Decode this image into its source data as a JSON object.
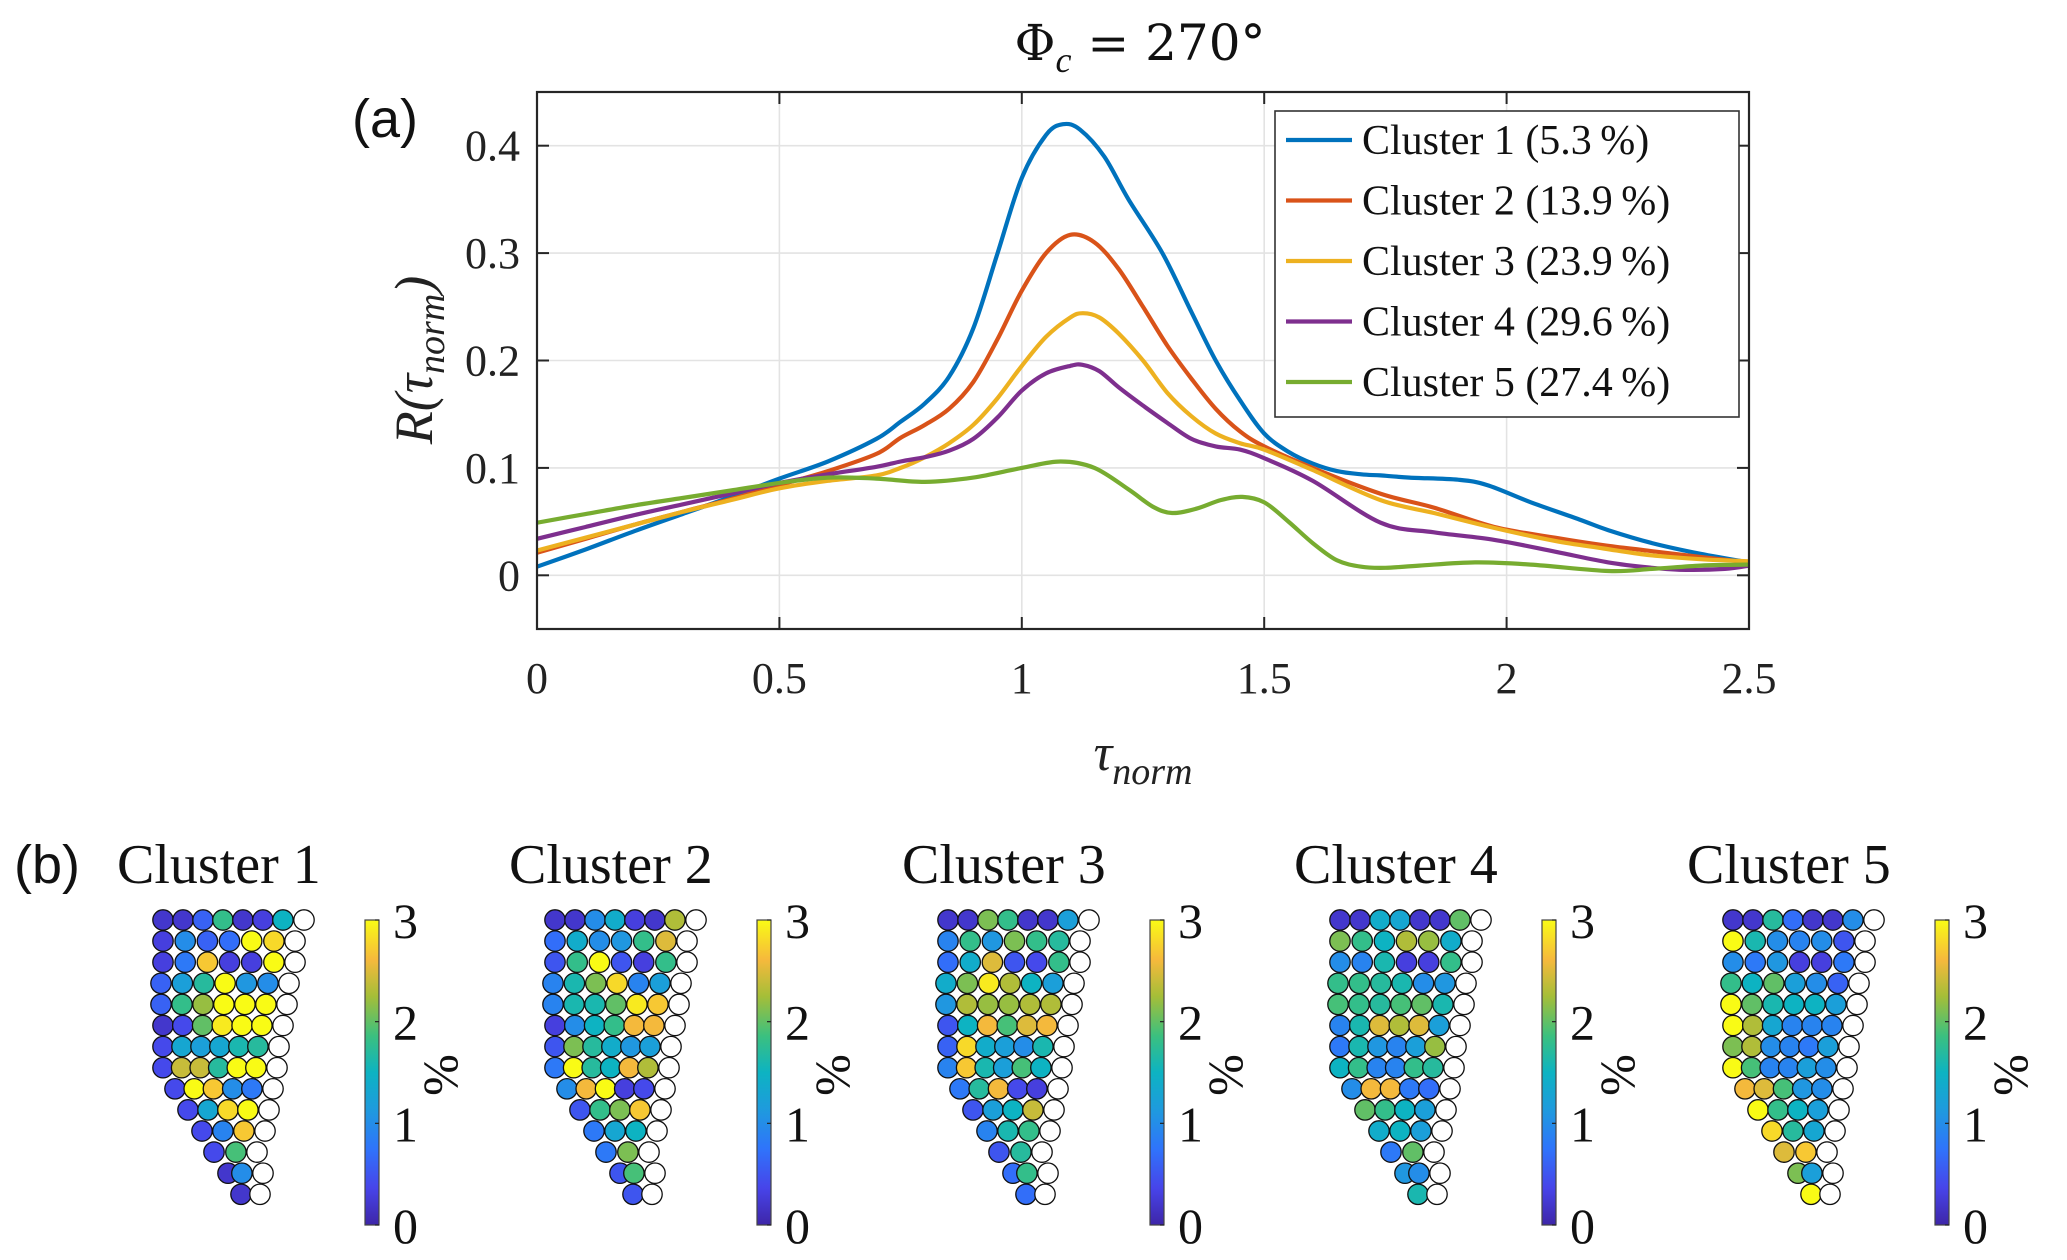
{
  "figure": {
    "title": "Φc = 270°",
    "title_main": "Φ",
    "title_sub": "c",
    "title_rest": " = 270°",
    "panel_a_label": "(a)",
    "panel_b_label": "(b)"
  },
  "chart_data": [
    {
      "type": "line",
      "panel": "(a)",
      "title": "Φc = 270°",
      "xlabel": "τ_norm",
      "xlabel_main": "τ",
      "xlabel_sub": "norm",
      "ylabel": "R(τ_norm)",
      "ylabel_parts": {
        "pre": "R(",
        "tau": "τ",
        "sub": "norm",
        "post": ")"
      },
      "xlim": [
        0,
        2.5
      ],
      "ylim": [
        -0.05,
        0.45
      ],
      "xticks": [
        0,
        0.5,
        1,
        1.5,
        2,
        2.5
      ],
      "xtick_labels": [
        "0",
        "0.5",
        "1",
        "1.5",
        "2",
        "2.5"
      ],
      "yticks": [
        0,
        0.1,
        0.2,
        0.3,
        0.4
      ],
      "ytick_labels": [
        "0",
        "0.1",
        "0.2",
        "0.3",
        "0.4"
      ],
      "grid": true,
      "legend_position": "top-right",
      "series": [
        {
          "name": "Cluster 1 (5.3%)",
          "label": "Cluster 1",
          "share": "5.3",
          "color": "#0072BD",
          "x": [
            0,
            0.1,
            0.2,
            0.3,
            0.4,
            0.5,
            0.6,
            0.7,
            0.75,
            0.8,
            0.85,
            0.9,
            0.95,
            1.0,
            1.05,
            1.085,
            1.12,
            1.17,
            1.22,
            1.29,
            1.35,
            1.4,
            1.45,
            1.5,
            1.55,
            1.6,
            1.65,
            1.7,
            1.74,
            1.8,
            1.9,
            1.96,
            2.05,
            2.15,
            2.21,
            2.3,
            2.4,
            2.5
          ],
          "y": [
            0.008,
            0.024,
            0.041,
            0.057,
            0.073,
            0.09,
            0.106,
            0.127,
            0.143,
            0.16,
            0.185,
            0.23,
            0.3,
            0.37,
            0.41,
            0.42,
            0.415,
            0.39,
            0.35,
            0.3,
            0.245,
            0.2,
            0.163,
            0.132,
            0.115,
            0.104,
            0.097,
            0.094,
            0.093,
            0.091,
            0.089,
            0.084,
            0.068,
            0.052,
            0.042,
            0.03,
            0.02,
            0.012
          ]
        },
        {
          "name": "Cluster 2 (13.9%)",
          "label": "Cluster 2",
          "share": "13.9",
          "color": "#D95319",
          "x": [
            0,
            0.1,
            0.2,
            0.3,
            0.4,
            0.5,
            0.6,
            0.7,
            0.75,
            0.8,
            0.85,
            0.9,
            0.95,
            1.0,
            1.05,
            1.1,
            1.15,
            1.2,
            1.25,
            1.3,
            1.35,
            1.4,
            1.45,
            1.5,
            1.6,
            1.74,
            1.85,
            1.975,
            2.1,
            2.2,
            2.29,
            2.4,
            2.5
          ],
          "y": [
            0.021,
            0.034,
            0.047,
            0.059,
            0.071,
            0.084,
            0.097,
            0.113,
            0.128,
            0.14,
            0.155,
            0.18,
            0.22,
            0.265,
            0.3,
            0.317,
            0.31,
            0.285,
            0.25,
            0.214,
            0.183,
            0.155,
            0.134,
            0.12,
            0.1,
            0.076,
            0.063,
            0.045,
            0.035,
            0.028,
            0.023,
            0.017,
            0.012
          ]
        },
        {
          "name": "Cluster 3 (23.9%)",
          "label": "Cluster 3",
          "share": "23.9",
          "color": "#EDB120",
          "x": [
            0,
            0.1,
            0.2,
            0.3,
            0.4,
            0.5,
            0.6,
            0.7,
            0.75,
            0.8,
            0.85,
            0.9,
            0.95,
            1.0,
            1.05,
            1.1,
            1.126,
            1.16,
            1.2,
            1.25,
            1.3,
            1.35,
            1.4,
            1.45,
            1.5,
            1.6,
            1.74,
            1.85,
            1.975,
            2.1,
            2.2,
            2.29,
            2.4,
            2.5
          ],
          "y": [
            0.023,
            0.035,
            0.047,
            0.059,
            0.07,
            0.081,
            0.088,
            0.093,
            0.1,
            0.11,
            0.123,
            0.14,
            0.165,
            0.195,
            0.222,
            0.24,
            0.244,
            0.24,
            0.225,
            0.2,
            0.17,
            0.148,
            0.132,
            0.123,
            0.117,
            0.098,
            0.07,
            0.058,
            0.044,
            0.032,
            0.025,
            0.019,
            0.015,
            0.013
          ]
        },
        {
          "name": "Cluster 4 (29.6%)",
          "label": "Cluster 4",
          "share": "29.6",
          "color": "#7E2F8E",
          "x": [
            0,
            0.1,
            0.2,
            0.3,
            0.4,
            0.5,
            0.6,
            0.7,
            0.75,
            0.8,
            0.85,
            0.9,
            0.95,
            1.0,
            1.05,
            1.1,
            1.125,
            1.16,
            1.2,
            1.25,
            1.3,
            1.35,
            1.4,
            1.45,
            1.5,
            1.6,
            1.74,
            1.85,
            1.975,
            2.1,
            2.21,
            2.3,
            2.37,
            2.45,
            2.5
          ],
          "y": [
            0.034,
            0.045,
            0.056,
            0.066,
            0.076,
            0.086,
            0.094,
            0.101,
            0.106,
            0.11,
            0.116,
            0.127,
            0.147,
            0.172,
            0.188,
            0.195,
            0.196,
            0.19,
            0.175,
            0.158,
            0.142,
            0.127,
            0.12,
            0.117,
            0.109,
            0.088,
            0.049,
            0.04,
            0.033,
            0.022,
            0.012,
            0.007,
            0.005,
            0.006,
            0.009
          ]
        },
        {
          "name": "Cluster 5 (27.4%)",
          "label": "Cluster 5",
          "share": "27.4",
          "color": "#77AC30",
          "x": [
            0,
            0.1,
            0.2,
            0.3,
            0.4,
            0.5,
            0.6,
            0.7,
            0.8,
            0.9,
            1.0,
            1.08,
            1.15,
            1.22,
            1.27,
            1.31,
            1.36,
            1.41,
            1.455,
            1.5,
            1.55,
            1.6,
            1.65,
            1.7,
            1.75,
            1.82,
            1.935,
            2.05,
            2.21,
            2.3,
            2.4,
            2.5
          ],
          "y": [
            0.049,
            0.057,
            0.065,
            0.072,
            0.079,
            0.086,
            0.091,
            0.09,
            0.087,
            0.091,
            0.1,
            0.106,
            0.1,
            0.08,
            0.064,
            0.058,
            0.062,
            0.07,
            0.073,
            0.068,
            0.05,
            0.03,
            0.014,
            0.008,
            0.007,
            0.009,
            0.012,
            0.01,
            0.004,
            0.006,
            0.009,
            0.01
          ]
        }
      ]
    },
    {
      "type": "heatmap",
      "panel": "(b)",
      "description": "Spatial distribution per cluster (circle markers)",
      "colorbar": {
        "label": "%",
        "ticks": [
          0,
          1,
          2,
          3
        ],
        "tick_labels": [
          "0",
          "1",
          "2",
          "3"
        ],
        "range": [
          0,
          3
        ],
        "colormap": "parula"
      },
      "row_layout": {
        "colored_counts": [
          7,
          6,
          6,
          6,
          6,
          6,
          6,
          6,
          5,
          4,
          3,
          2,
          2,
          1
        ],
        "trailing_empty_per_row": 1
      },
      "clusters": [
        {
          "title": "Cluster 1",
          "rows": [
            [
              0.2,
              0.2,
              0.6,
              1.8,
              0.2,
              0.3,
              1.5
            ],
            [
              0.3,
              1.0,
              0.6,
              0.7,
              3.0,
              2.8
            ],
            [
              0.3,
              0.8,
              2.7,
              0.3,
              0.3,
              3.0
            ],
            [
              0.6,
              1.2,
              1.7,
              3.0,
              1.1,
              1.0
            ],
            [
              0.6,
              1.8,
              2.2,
              3.0,
              3.0,
              3.0
            ],
            [
              0.2,
              0.4,
              2.0,
              2.9,
              3.0,
              3.0
            ],
            [
              0.4,
              1.3,
              1.2,
              1.3,
              1.6,
              1.7
            ],
            [
              0.4,
              2.4,
              2.4,
              1.7,
              3.0,
              3.0
            ],
            [
              0.4,
              3.0,
              2.7,
              1.0,
              0.8
            ],
            [
              0.4,
              1.3,
              2.8,
              3.0
            ],
            [
              0.4,
              0.9,
              2.7
            ],
            [
              0.4,
              1.9
            ],
            [
              0.2,
              1.0
            ],
            [
              0.2
            ]
          ]
        },
        {
          "title": "Cluster 2",
          "rows": [
            [
              0.2,
              0.2,
              1.0,
              1.4,
              0.3,
              0.2,
              2.3
            ],
            [
              0.7,
              1.4,
              1.0,
              1.1,
              1.8,
              2.5
            ],
            [
              0.5,
              1.8,
              3.0,
              0.5,
              0.3,
              1.8
            ],
            [
              0.9,
              1.6,
              2.1,
              2.8,
              0.9,
              1.2
            ],
            [
              0.9,
              1.6,
              1.6,
              2.0,
              2.9,
              2.7
            ],
            [
              0.3,
              1.0,
              1.5,
              1.8,
              2.6,
              2.6
            ],
            [
              0.5,
              2.1,
              1.7,
              1.4,
              1.1,
              1.2
            ],
            [
              0.8,
              3.0,
              1.7,
              1.5,
              2.6,
              2.3
            ],
            [
              1.0,
              2.6,
              3.0,
              0.3,
              0.4
            ],
            [
              0.5,
              1.8,
              2.1,
              2.7
            ],
            [
              0.8,
              1.3,
              1.5
            ],
            [
              0.8,
              2.1
            ],
            [
              0.5,
              1.9
            ],
            [
              0.5
            ]
          ]
        },
        {
          "title": "Cluster 3",
          "rows": [
            [
              0.2,
              0.2,
              2.1,
              1.8,
              0.2,
              0.2,
              1.2
            ],
            [
              0.9,
              1.8,
              1.1,
              2.1,
              1.8,
              1.7
            ],
            [
              0.7,
              1.4,
              2.5,
              0.5,
              0.4,
              1.8
            ],
            [
              1.4,
              2.1,
              2.9,
              2.3,
              1.5,
              1.2
            ],
            [
              1.1,
              2.3,
              2.2,
              2.2,
              2.3,
              2.3
            ],
            [
              0.5,
              1.5,
              2.6,
              1.9,
              2.5,
              2.6
            ],
            [
              0.6,
              2.8,
              1.4,
              1.2,
              1.0,
              1.6
            ],
            [
              0.9,
              2.7,
              1.6,
              1.2,
              1.9,
              1.5
            ],
            [
              0.8,
              1.7,
              2.6,
              0.4,
              0.3
            ],
            [
              0.5,
              1.2,
              1.5,
              2.4
            ],
            [
              0.9,
              1.6,
              1.8
            ],
            [
              0.5,
              1.7
            ],
            [
              0.7,
              1.8
            ],
            [
              0.7
            ]
          ]
        },
        {
          "title": "Cluster 4",
          "rows": [
            [
              0.2,
              0.2,
              1.4,
              1.3,
              0.2,
              0.2,
              2.0
            ],
            [
              2.1,
              1.8,
              1.5,
              2.3,
              2.2,
              1.4
            ],
            [
              1.0,
              0.9,
              1.6,
              0.3,
              0.3,
              1.8
            ],
            [
              1.8,
              1.8,
              1.7,
              1.6,
              1.0,
              1.1
            ],
            [
              1.9,
              1.8,
              1.7,
              1.9,
              2.0,
              1.6
            ],
            [
              0.9,
              1.6,
              2.5,
              2.3,
              2.5,
              1.2
            ],
            [
              0.8,
              1.6,
              1.1,
              0.9,
              1.2,
              2.2
            ],
            [
              1.5,
              1.8,
              0.9,
              0.9,
              1.8,
              1.7
            ],
            [
              1.0,
              2.6,
              2.6,
              0.8,
              0.7
            ],
            [
              2.0,
              1.8,
              1.5,
              1.2
            ],
            [
              1.4,
              1.5,
              1.2
            ],
            [
              0.8,
              2.0
            ],
            [
              1.1,
              1.0
            ],
            [
              1.6
            ]
          ]
        },
        {
          "title": "Cluster 5",
          "rows": [
            [
              0.2,
              0.2,
              1.7,
              0.7,
              0.2,
              0.2,
              1.0
            ],
            [
              3.0,
              1.6,
              1.0,
              0.9,
              1.0,
              0.5
            ],
            [
              1.0,
              0.8,
              1.1,
              0.3,
              0.3,
              0.8
            ],
            [
              1.8,
              1.5,
              2.0,
              1.2,
              1.0,
              0.6
            ],
            [
              3.0,
              2.0,
              1.6,
              1.5,
              1.5,
              1.2
            ],
            [
              3.0,
              2.3,
              1.3,
              0.9,
              0.9,
              0.9
            ],
            [
              2.1,
              2.3,
              1.0,
              0.9,
              0.8,
              1.2
            ],
            [
              3.0,
              1.9,
              0.9,
              0.9,
              1.2,
              1.0
            ],
            [
              2.6,
              2.5,
              1.9,
              1.1,
              1.0
            ],
            [
              3.0,
              1.8,
              1.5,
              1.2
            ],
            [
              2.8,
              1.7,
              1.3
            ],
            [
              2.5,
              2.7
            ],
            [
              2.1,
              1.2
            ],
            [
              3.0
            ]
          ]
        }
      ]
    }
  ]
}
